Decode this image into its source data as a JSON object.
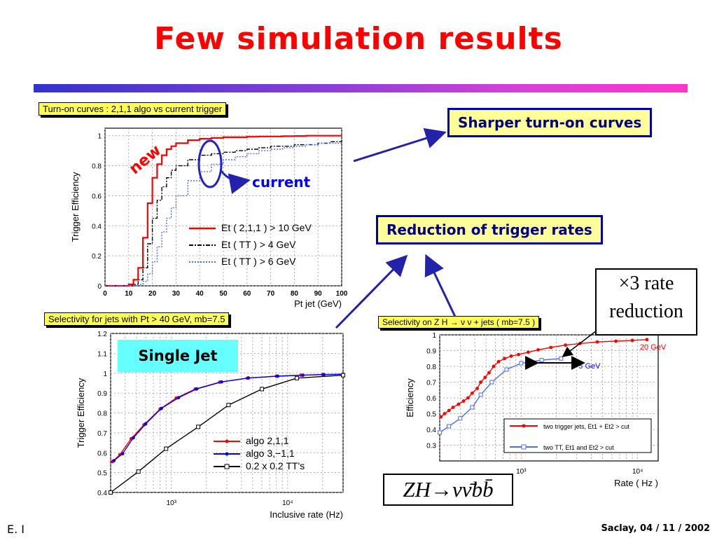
{
  "slide": {
    "title": "Few simulation results",
    "footer_left": "E. I",
    "footer_right": "Saclay, 04 / 11 / 2002",
    "callouts": {
      "sharper": "Sharper turn-on curves",
      "reduction": "Reduction of trigger rates",
      "rate_line1": "×3 rate",
      "rate_line2": "reduction",
      "single_jet": "Single Jet",
      "zh_formula": "ZH→νν̄bb̄",
      "new": "new",
      "current": "current"
    },
    "colors": {
      "title": "#ff0000",
      "callout_border": "#0000aa",
      "accent_red": "#ff0000",
      "accent_blue": "#0000ff"
    }
  },
  "chart_data": [
    {
      "type": "line",
      "title": "Turn-on curves : 2,1,1 algo vs current trigger",
      "xlabel": "Pt jet (GeV)",
      "ylabel": "Trigger Efficiency",
      "xlim": [
        0,
        100
      ],
      "ylim": [
        0,
        1.05
      ],
      "xticks": [
        "0",
        "10",
        "20",
        "30",
        "40",
        "50",
        "60",
        "70",
        "80",
        "90",
        "100"
      ],
      "yticks": [
        "0",
        "0.2",
        "0.4",
        "0.6",
        "0.8",
        "1"
      ],
      "grid": true,
      "legend_position": "bottom-right",
      "x": [
        0,
        10,
        12,
        14,
        16,
        18,
        20,
        22,
        24,
        26,
        28,
        30,
        35,
        40,
        45,
        50,
        55,
        60,
        65,
        70,
        75,
        80,
        85,
        90,
        95,
        100
      ],
      "series": [
        {
          "name": "Et ( 2,1,1 ) > 10 GeV",
          "color": "#ff0000",
          "style": "solid",
          "values": [
            0,
            0.01,
            0.04,
            0.12,
            0.32,
            0.55,
            0.72,
            0.81,
            0.87,
            0.91,
            0.93,
            0.95,
            0.97,
            0.98,
            0.985,
            0.99,
            0.99,
            0.993,
            0.995,
            0.995,
            0.997,
            0.998,
            1.0,
            1.0,
            1.0,
            1.0
          ]
        },
        {
          "name": "Et ( TT ) > 4 GeV",
          "color": "#000000",
          "style": "dashdot",
          "values": [
            0,
            0.0,
            0.01,
            0.04,
            0.12,
            0.28,
            0.45,
            0.57,
            0.66,
            0.72,
            0.77,
            0.8,
            0.84,
            0.87,
            0.88,
            0.89,
            0.9,
            0.91,
            0.92,
            0.93,
            0.93,
            0.94,
            0.94,
            0.95,
            0.96,
            0.97
          ]
        },
        {
          "name": "Et ( TT ) > 6 GeV",
          "color": "#4a6cff",
          "style": "dotted",
          "values": [
            0,
            0.0,
            0.0,
            0.01,
            0.03,
            0.08,
            0.16,
            0.26,
            0.36,
            0.45,
            0.52,
            0.6,
            0.7,
            0.76,
            0.81,
            0.84,
            0.86,
            0.88,
            0.9,
            0.91,
            0.92,
            0.93,
            0.94,
            0.95,
            0.95,
            0.96
          ]
        }
      ]
    },
    {
      "type": "line",
      "title": "Selectivity for jets with Pt > 40 GeV, mb=7.5",
      "xlabel": "Inclusive rate (Hz)",
      "ylabel": "Trigger Efficiency",
      "xscale": "log",
      "xlim": [
        300,
        30000
      ],
      "ylim": [
        0.4,
        1.2
      ],
      "xticks": [
        "10³",
        "10⁴"
      ],
      "yticks": [
        "0.4",
        "0.5",
        "0.6",
        "0.7",
        "0.8",
        "0.9",
        "1",
        "1.1",
        "1.2"
      ],
      "grid": true,
      "legend_position": "bottom-right",
      "series": [
        {
          "name": "algo 2,1,1",
          "color": "#ff0000",
          "marker": "circle",
          "x": [
            310,
            360,
            450,
            580,
            800,
            1100,
            1600,
            2600,
            4500,
            8000,
            13000,
            20000,
            30000
          ],
          "values": [
            0.555,
            0.59,
            0.67,
            0.74,
            0.82,
            0.875,
            0.92,
            0.955,
            0.975,
            0.985,
            0.99,
            0.993,
            0.995
          ]
        },
        {
          "name": "algo 3,−1,1",
          "color": "#0000ff",
          "marker": "circle",
          "x": [
            320,
            380,
            470,
            600,
            820,
            1150,
            1650,
            2700,
            4600,
            8200,
            13500,
            20500,
            30000
          ],
          "values": [
            0.56,
            0.595,
            0.675,
            0.745,
            0.823,
            0.877,
            0.921,
            0.956,
            0.976,
            0.985,
            0.99,
            0.993,
            0.995
          ]
        },
        {
          "name": "0.2 x 0.2 TT's",
          "color": "#000000",
          "marker": "open-square",
          "x": [
            300,
            520,
            900,
            1700,
            3100,
            6000,
            12000,
            30000
          ],
          "values": [
            0.4,
            0.505,
            0.62,
            0.73,
            0.84,
            0.92,
            0.975,
            0.99
          ]
        }
      ]
    },
    {
      "type": "line",
      "title": "Selectivity on Z H → ν ν + jets ( mb=7.5 )",
      "xlabel": "Rate ( Hz )",
      "ylabel": "Efficiency",
      "xscale": "log",
      "xlim": [
        200,
        15000
      ],
      "ylim": [
        0.2,
        1.0
      ],
      "xticks": [
        "10³",
        "10⁴"
      ],
      "yticks": [
        "0.3",
        "0.4",
        "0.5",
        "0.6",
        "0.7",
        "0.8",
        "0.9",
        "1"
      ],
      "grid": true,
      "legend_position": "bottom-right",
      "annotations": [
        "20 GeV",
        "5 GeV"
      ],
      "series": [
        {
          "name": "two trigger jets, Et1 + Et2 > cut",
          "color": "#ff0000",
          "marker": "circle",
          "x": [
            205,
            220,
            240,
            260,
            290,
            320,
            350,
            380,
            420,
            450,
            490,
            530,
            580,
            640,
            720,
            820,
            950,
            1150,
            1400,
            1800,
            2400,
            3200,
            4500,
            6500,
            9000,
            12000
          ],
          "values": [
            0.48,
            0.5,
            0.52,
            0.54,
            0.56,
            0.58,
            0.6,
            0.63,
            0.66,
            0.7,
            0.73,
            0.76,
            0.8,
            0.83,
            0.85,
            0.865,
            0.875,
            0.89,
            0.905,
            0.92,
            0.935,
            0.945,
            0.955,
            0.96,
            0.965,
            0.97
          ]
        },
        {
          "name": "two TT, Et1 and Et2 > cut",
          "color": "#4a6cff",
          "marker": "open-square",
          "x": [
            200,
            240,
            300,
            380,
            450,
            560,
            750,
            1000,
            1500,
            2200
          ],
          "values": [
            0.38,
            0.42,
            0.47,
            0.54,
            0.62,
            0.7,
            0.78,
            0.82,
            0.84,
            0.85
          ]
        }
      ]
    }
  ]
}
